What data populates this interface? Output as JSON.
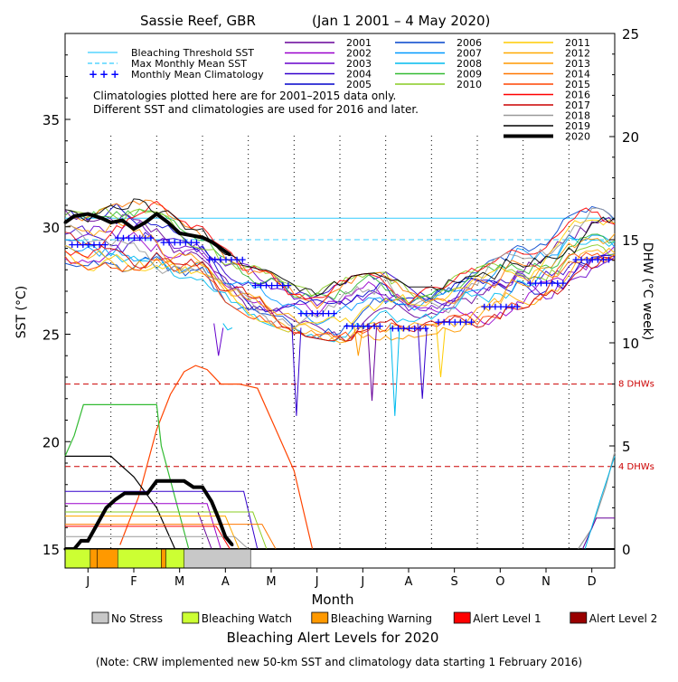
{
  "chart_data": {
    "type": "line",
    "title_site": "Sassie Reef, GBR",
    "title_range": "(Jan 1 2001 – 4 May 2020)",
    "xlabel": "Month",
    "ylabel_left": "SST (°C)",
    "ylabel_right": "DHW (°C week)",
    "x_ticks": [
      "J",
      "F",
      "M",
      "A",
      "M",
      "J",
      "J",
      "A",
      "S",
      "O",
      "N",
      "D"
    ],
    "y_left_ticks": [
      15,
      20,
      25,
      30,
      35
    ],
    "y_left_range": [
      15,
      39
    ],
    "y_right_ticks": [
      0,
      5,
      10,
      15,
      20,
      25
    ],
    "y_right_range": [
      0,
      25
    ],
    "bleaching_threshold_sst": 30.4,
    "max_monthly_mean_sst": 29.4,
    "dhw_reference_lines": [
      {
        "value": 8,
        "label": "8 DHWs"
      },
      {
        "value": 4,
        "label": "4 DHWs"
      }
    ],
    "legend_left": [
      {
        "label": "Bleaching Threshold SST",
        "style": "solid",
        "color": "#33ccff"
      },
      {
        "label": "Max Monthly Mean SST",
        "style": "dashed",
        "color": "#33ccff"
      },
      {
        "label": "Monthly Mean Climatology",
        "style": "plus",
        "color": "#0000ff"
      }
    ],
    "notes": [
      "Climatologies plotted here are for 2001–2015 data only.",
      "Different SST and climatologies are used for 2016 and later."
    ],
    "years": [
      {
        "name": "2001",
        "color": "#660099"
      },
      {
        "name": "2002",
        "color": "#9900cc"
      },
      {
        "name": "2003",
        "color": "#6600cc"
      },
      {
        "name": "2004",
        "color": "#3300cc"
      },
      {
        "name": "2005",
        "color": "#0000cc"
      },
      {
        "name": "2006",
        "color": "#0044cc"
      },
      {
        "name": "2007",
        "color": "#0099ff"
      },
      {
        "name": "2008",
        "color": "#00bbee"
      },
      {
        "name": "2009",
        "color": "#33bb33"
      },
      {
        "name": "2010",
        "color": "#88cc22"
      },
      {
        "name": "2011",
        "color": "#ffcc00"
      },
      {
        "name": "2012",
        "color": "#ffaa00"
      },
      {
        "name": "2013",
        "color": "#ff9900"
      },
      {
        "name": "2014",
        "color": "#ff7700"
      },
      {
        "name": "2015",
        "color": "#ff4400"
      },
      {
        "name": "2016",
        "color": "#ff0000"
      },
      {
        "name": "2017",
        "color": "#cc0000"
      },
      {
        "name": "2018",
        "color": "#999999"
      },
      {
        "name": "2019",
        "color": "#000000"
      },
      {
        "name": "2020",
        "color": "#000000",
        "bold": true
      }
    ],
    "climatology_values": [
      29.2,
      29.5,
      29.3,
      28.5,
      27.3,
      26.0,
      25.4,
      25.3,
      25.6,
      26.3,
      27.4,
      28.5
    ],
    "sst_band": {
      "months": [
        0,
        0.5,
        1,
        1.5,
        2,
        2.5,
        3,
        3.5,
        4,
        4.5,
        5,
        5.5,
        6,
        6.5,
        7,
        7.5,
        8,
        8.5,
        9,
        9.5,
        10,
        10.5,
        11,
        11.5,
        12
      ],
      "high": [
        30.8,
        30.6,
        31.0,
        31.3,
        31.2,
        30.3,
        30.0,
        29.0,
        28.3,
        27.9,
        27.3,
        27.0,
        27.6,
        27.8,
        27.9,
        27.2,
        27.2,
        27.7,
        28.2,
        28.6,
        29.3,
        29.8,
        30.5,
        31.0,
        30.6
      ],
      "low": [
        28.3,
        28.0,
        27.8,
        28.0,
        27.9,
        27.6,
        27.5,
        26.5,
        25.8,
        25.4,
        25.0,
        24.8,
        24.6,
        24.8,
        24.7,
        24.8,
        25.0,
        25.1,
        25.3,
        25.6,
        26.2,
        26.5,
        27.2,
        27.8,
        28.0
      ]
    },
    "sst_2020": {
      "months": [
        0,
        0.2,
        0.5,
        0.8,
        1.0,
        1.25,
        1.5,
        1.75,
        2.0,
        2.25,
        2.5,
        2.75,
        3.0,
        3.2,
        3.4,
        3.6
      ],
      "values": [
        30.2,
        30.5,
        30.6,
        30.4,
        30.2,
        30.3,
        29.9,
        30.2,
        30.6,
        30.2,
        29.7,
        29.6,
        29.5,
        29.3,
        29.0,
        28.7
      ]
    },
    "dhw_2020": {
      "months": [
        0,
        0.2,
        0.35,
        0.5,
        0.7,
        0.9,
        1.1,
        1.3,
        1.5,
        1.8,
        2.0,
        2.2,
        2.4,
        2.6,
        2.8,
        3.0,
        3.2,
        3.35,
        3.5,
        3.65
      ],
      "values": [
        0,
        0,
        0.4,
        0.4,
        1.2,
        2.0,
        2.4,
        2.7,
        2.7,
        2.7,
        3.3,
        3.3,
        3.3,
        3.3,
        3.0,
        3.0,
        2.3,
        1.5,
        0.6,
        0.2
      ]
    },
    "dhw_max_2017": {
      "months": [
        1.2,
        1.6,
        2.0,
        2.3,
        2.6,
        2.85,
        3.1,
        3.4,
        3.8,
        4.2,
        4.6,
        5.0,
        5.4
      ],
      "values": [
        0.2,
        2.5,
        5.8,
        7.5,
        8.6,
        8.9,
        8.7,
        8.0,
        8.0,
        7.8,
        5.8,
        3.8,
        0.0
      ]
    },
    "dhw_high_2002": {
      "months": [
        0,
        0.2,
        0.4,
        0.8,
        1.2,
        1.6,
        2.0,
        2.1,
        2.4,
        2.7
      ],
      "values": [
        4.5,
        5.5,
        7.0,
        7.0,
        7.0,
        7.0,
        7.0,
        5.0,
        2.5,
        0.0
      ]
    },
    "dhw_2019_black": {
      "months": [
        0,
        0.5,
        1.0,
        1.5,
        2.0,
        2.4
      ],
      "values": [
        4.5,
        4.5,
        4.5,
        3.5,
        2.0,
        0.0
      ]
    },
    "dhw_end_2020_tail": {
      "months": [
        11.2,
        11.5,
        11.8,
        12.0
      ],
      "values": [
        0.0,
        1.0,
        3.0,
        4.7
      ]
    },
    "alert_bar_2020": [
      {
        "from": 0.0,
        "to": 0.55,
        "level": "watch"
      },
      {
        "from": 0.55,
        "to": 0.7,
        "level": "warning"
      },
      {
        "from": 0.7,
        "to": 1.15,
        "level": "warning"
      },
      {
        "from": 1.15,
        "to": 2.1,
        "level": "watch"
      },
      {
        "from": 2.1,
        "to": 2.2,
        "level": "warning"
      },
      {
        "from": 2.2,
        "to": 2.6,
        "level": "watch"
      },
      {
        "from": 2.6,
        "to": 4.05,
        "level": "none"
      }
    ],
    "alert_legend": [
      {
        "key": "none",
        "label": "No Stress",
        "color": "#c8c8c8"
      },
      {
        "key": "watch",
        "label": "Bleaching Watch",
        "color": "#ccff33"
      },
      {
        "key": "warning",
        "label": "Bleaching Warning",
        "color": "#ff9900"
      },
      {
        "key": "alert1",
        "label": "Alert Level 1",
        "color": "#ff0000"
      },
      {
        "key": "alert2",
        "label": "Alert Level 2",
        "color": "#990000"
      }
    ],
    "alert_title": "Bleaching Alert Levels for 2020",
    "footnote": "(Note: CRW implemented new 50-km SST and climatology data starting 1 February 2016)"
  }
}
